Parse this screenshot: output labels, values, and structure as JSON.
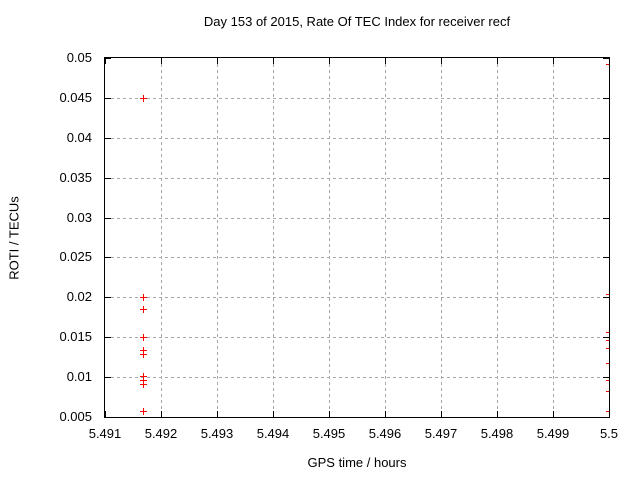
{
  "chart_data": {
    "type": "scatter",
    "title": "Day 153 of 2015, Rate Of TEC Index for receiver recf",
    "xlabel": "GPS time / hours",
    "ylabel": "ROTI / TECUs",
    "xlim": [
      5.491,
      5.5
    ],
    "ylim": [
      0.005,
      0.05
    ],
    "xticks": [
      5.491,
      5.492,
      5.493,
      5.494,
      5.495,
      5.496,
      5.497,
      5.498,
      5.499,
      5.5
    ],
    "xtick_labels": [
      "5.491",
      "5.492",
      "5.493",
      "5.494",
      "5.495",
      "5.496",
      "5.497",
      "5.498",
      "5.499",
      "5.5"
    ],
    "yticks": [
      0.005,
      0.01,
      0.015,
      0.02,
      0.025,
      0.03,
      0.035,
      0.04,
      0.045,
      0.05
    ],
    "ytick_labels": [
      "0.005",
      "0.01",
      "0.015",
      "0.02",
      "0.025",
      "0.03",
      "0.035",
      "0.04",
      "0.045",
      "0.05"
    ],
    "grid": true,
    "legend": "none",
    "marker": "plus-cross",
    "colors": {
      "marker": "#ff0000",
      "grid": "#a8a8a8",
      "axis": "#000000",
      "text": "#000000",
      "background": "#ffffff"
    },
    "series": [
      {
        "name": "ROTI",
        "points": [
          [
            5.49167,
            0.045
          ],
          [
            5.49167,
            0.0201
          ],
          [
            5.49167,
            0.0185
          ],
          [
            5.49167,
            0.015
          ],
          [
            5.49167,
            0.0134
          ],
          [
            5.49167,
            0.0129
          ],
          [
            5.49167,
            0.0101
          ],
          [
            5.49167,
            0.0096
          ],
          [
            5.49167,
            0.0091
          ],
          [
            5.49167,
            0.0058
          ],
          [
            5.5,
            0.0492
          ],
          [
            5.5,
            0.0204
          ],
          [
            5.5,
            0.0156
          ],
          [
            5.5,
            0.0146
          ],
          [
            5.5,
            0.0137
          ],
          [
            5.5,
            0.0118
          ],
          [
            5.5,
            0.0096
          ],
          [
            5.5,
            0.0082
          ],
          [
            5.5,
            0.0058
          ]
        ]
      }
    ]
  }
}
